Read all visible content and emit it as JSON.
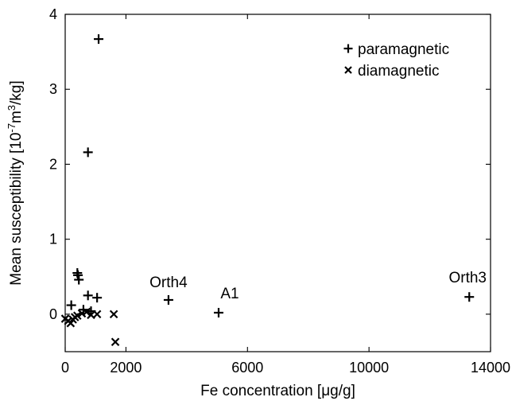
{
  "chart_data": {
    "type": "scatter",
    "xlabel": "Fe concentration [μg/g]",
    "ylabel_parts": {
      "prefix": "Mean susceptibility [10",
      "exp1": "-7",
      "mid": "m",
      "exp2": "3",
      "suffix": "/kg]"
    },
    "xlim": [
      0,
      14000
    ],
    "ylim": [
      -0.5,
      4
    ],
    "xticks": [
      0,
      2000,
      6000,
      10000,
      14000
    ],
    "xtick_labels": [
      "0",
      "2000",
      "6000",
      "10000",
      "14000"
    ],
    "yticks": [
      0,
      1,
      2,
      3,
      4
    ],
    "ytick_labels": [
      "0",
      "1",
      "2",
      "3",
      "4"
    ],
    "legend_position": "top-right",
    "grid": false,
    "series": [
      {
        "name": "paramagnetic",
        "marker": "plus",
        "points": [
          {
            "x": 1100,
            "y": 3.67
          },
          {
            "x": 750,
            "y": 2.16
          },
          {
            "x": 400,
            "y": 0.55
          },
          {
            "x": 420,
            "y": 0.52
          },
          {
            "x": 450,
            "y": 0.46
          },
          {
            "x": 750,
            "y": 0.25
          },
          {
            "x": 1050,
            "y": 0.22
          },
          {
            "x": 200,
            "y": 0.12
          },
          {
            "x": 600,
            "y": 0.06
          },
          {
            "x": 850,
            "y": 0.04
          },
          {
            "x": 3400,
            "y": 0.19
          },
          {
            "x": 5050,
            "y": 0.02
          },
          {
            "x": 13300,
            "y": 0.23
          }
        ]
      },
      {
        "name": "diamagnetic",
        "marker": "x",
        "points": [
          {
            "x": 0,
            "y": -0.06
          },
          {
            "x": 100,
            "y": -0.09
          },
          {
            "x": 180,
            "y": -0.12
          },
          {
            "x": 250,
            "y": -0.07
          },
          {
            "x": 320,
            "y": -0.04
          },
          {
            "x": 400,
            "y": -0.02
          },
          {
            "x": 550,
            "y": 0.01
          },
          {
            "x": 700,
            "y": 0.03
          },
          {
            "x": 850,
            "y": -0.01
          },
          {
            "x": 1050,
            "y": 0.0
          },
          {
            "x": 1600,
            "y": 0.0
          },
          {
            "x": 1650,
            "y": -0.37
          }
        ]
      }
    ],
    "annotations": [
      {
        "text": "Orth4",
        "x": 3400,
        "y": 0.19
      },
      {
        "text": "A1",
        "x": 5050,
        "y": 0.02
      },
      {
        "text": "Orth3",
        "x": 13300,
        "y": 0.23
      }
    ]
  }
}
